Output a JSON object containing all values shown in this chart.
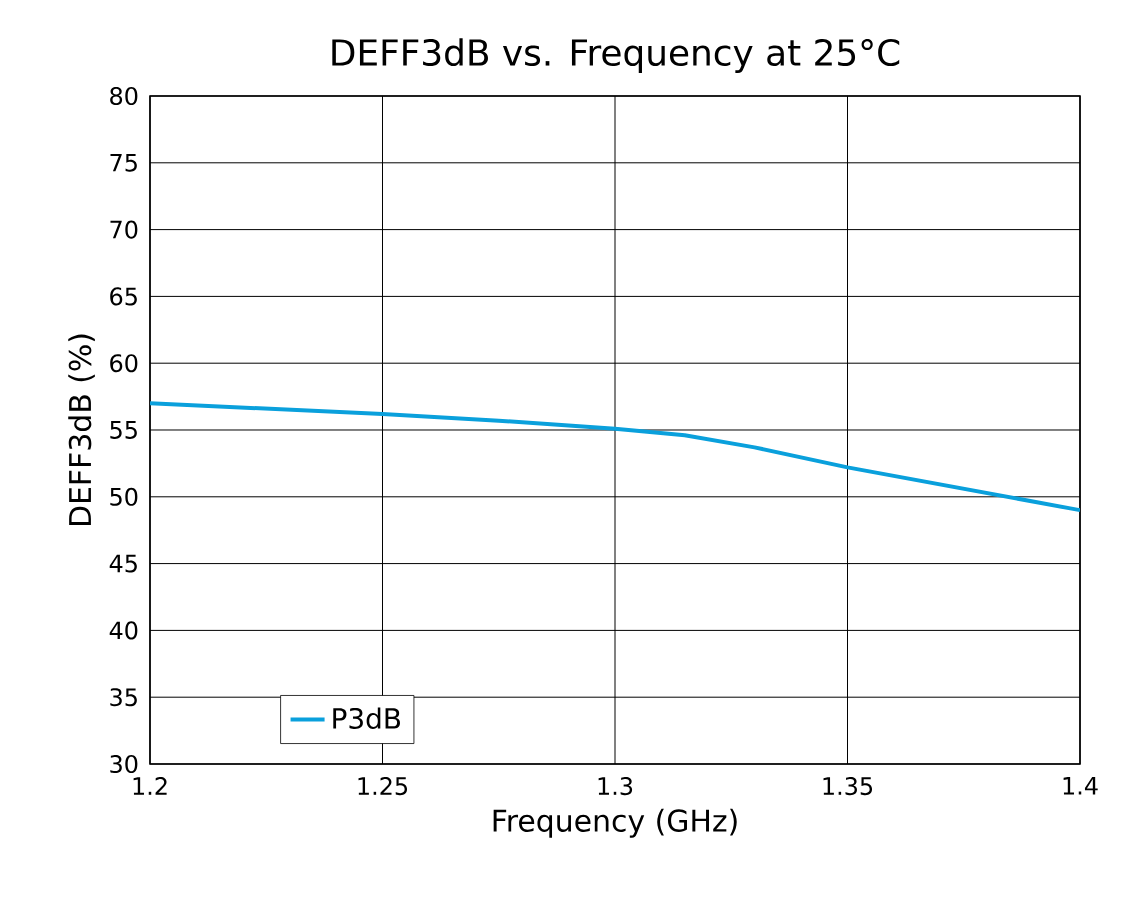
{
  "chart_data": {
    "type": "line",
    "title": "DEFF3dB vs. Frequency at 25°C",
    "xlabel": "Frequency (GHz)",
    "ylabel": "DEFF3dB (%)",
    "x": [
      1.2,
      1.225,
      1.25,
      1.275,
      1.3,
      1.315,
      1.33,
      1.35,
      1.375,
      1.4
    ],
    "series": [
      {
        "name": "P3dB",
        "color": "#0aa0dc",
        "values": [
          57,
          56.6,
          56.2,
          55.7,
          55.1,
          54.6,
          53.7,
          52.2,
          50.6,
          49
        ]
      }
    ],
    "xlim": [
      1.2,
      1.4
    ],
    "xticks": [
      1.2,
      1.25,
      1.3,
      1.35,
      1.4
    ],
    "ylim": [
      30,
      80
    ],
    "yticks": [
      30,
      35,
      40,
      45,
      50,
      55,
      60,
      65,
      70,
      75,
      80
    ],
    "grid": true,
    "legend": "bottom left",
    "marker": "none",
    "line_style": "solid"
  }
}
